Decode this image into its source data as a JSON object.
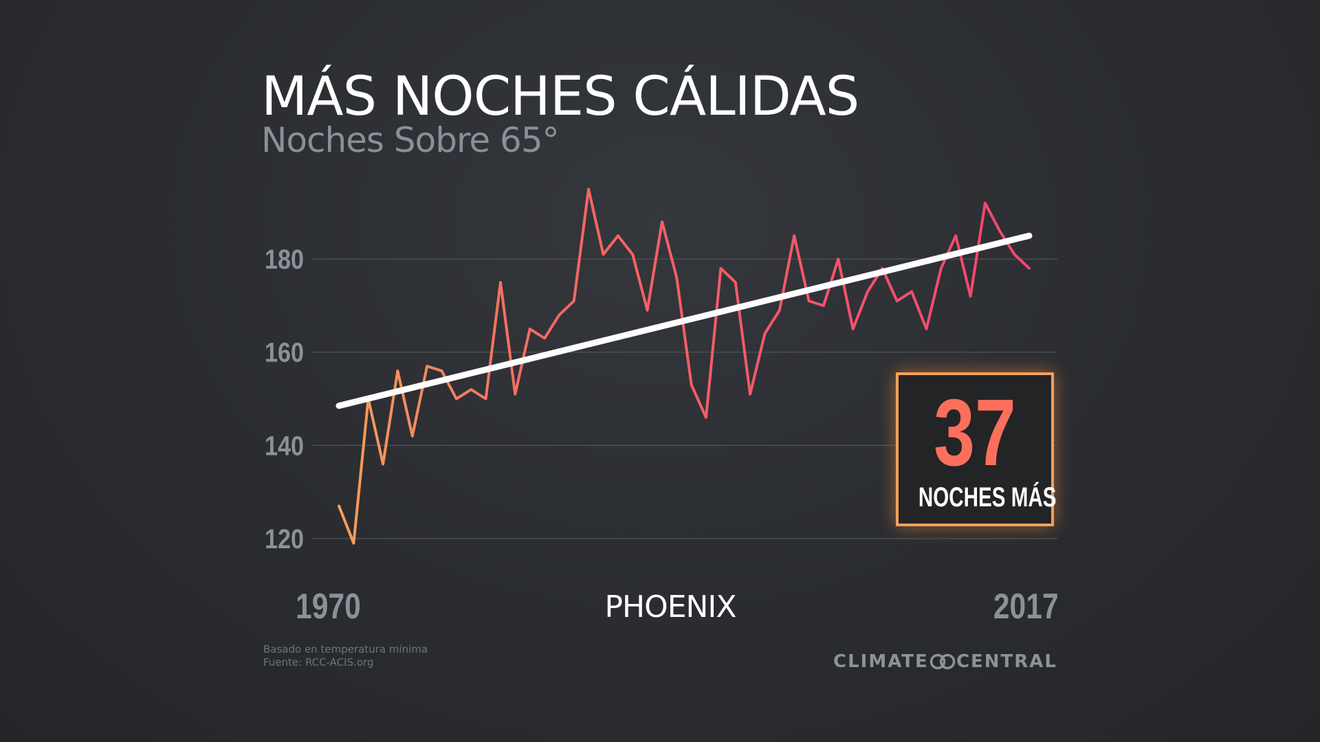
{
  "title": "MÁS NOCHES CÁLIDAS",
  "subtitle": "Noches Sobre 65°",
  "city": "PHOENIX",
  "x_start_label": "1970",
  "x_end_label": "2017",
  "callout": {
    "number": "37",
    "label": "NOCHES MÁS"
  },
  "footnote": {
    "line1": "Basado en temperatura mínima",
    "line2": "Fuente: RCC-ACIS.org"
  },
  "brand": {
    "left": "CLIMATE",
    "right": "CENTRAL",
    "logo_icon": "climate-central-logo-icon"
  },
  "colors": {
    "line_start": "#f5a05a",
    "line_end": "#f2456f",
    "trend": "#ffffff",
    "callout_border": "#f5a05a",
    "callout_number": "#fb6f5c"
  },
  "chart_data": {
    "type": "line",
    "title": "MÁS NOCHES CÁLIDAS",
    "subtitle": "Noches Sobre 65°",
    "ylim": [
      116,
      198
    ],
    "yticks": [
      120,
      140,
      160,
      180
    ],
    "xlim": [
      1970,
      2017
    ],
    "grid": true,
    "x": [
      1970,
      1971,
      1972,
      1973,
      1974,
      1975,
      1976,
      1977,
      1978,
      1979,
      1980,
      1981,
      1982,
      1983,
      1984,
      1985,
      1986,
      1987,
      1988,
      1989,
      1990,
      1991,
      1992,
      1993,
      1994,
      1995,
      1996,
      1997,
      1998,
      1999,
      2000,
      2001,
      2002,
      2003,
      2004,
      2005,
      2006,
      2007,
      2008,
      2009,
      2010,
      2011,
      2012,
      2013,
      2014,
      2015,
      2016,
      2017
    ],
    "series": [
      {
        "values": [
          127,
          119,
          150,
          136,
          156,
          142,
          157,
          156,
          150,
          152,
          150,
          175,
          151,
          165,
          163,
          168,
          171,
          195,
          181,
          185,
          181,
          169,
          188,
          176,
          153,
          146,
          178,
          175,
          151,
          164,
          169,
          185,
          171,
          170,
          180,
          165,
          173,
          178,
          171,
          173,
          165,
          178,
          185,
          172,
          192,
          186,
          181,
          178
        ]
      }
    ],
    "trend": {
      "start": [
        1970,
        148.5
      ],
      "end": [
        2017,
        185
      ]
    }
  }
}
